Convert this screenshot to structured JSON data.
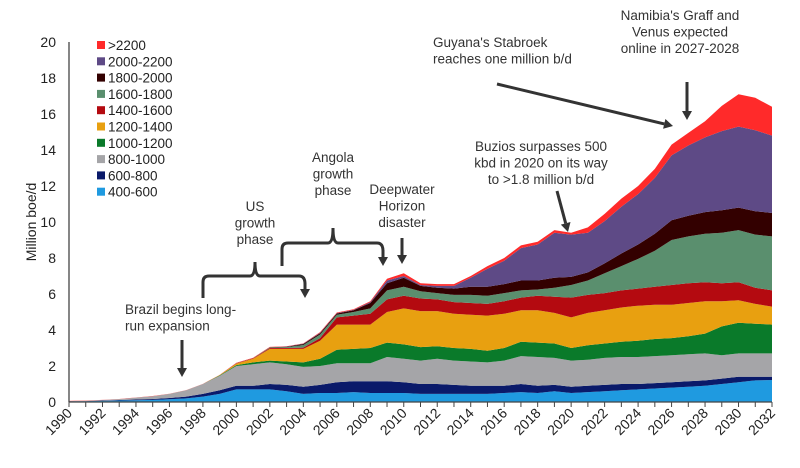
{
  "chart_data": {
    "type": "area",
    "stacked": true,
    "ylabel": "Million boe/d",
    "xlabel": "",
    "ylim": [
      0,
      20
    ],
    "yticks": [
      "0",
      "2",
      "4",
      "6",
      "8",
      "10",
      "12",
      "14",
      "16",
      "18",
      "20"
    ],
    "xlim": [
      1990,
      2032
    ],
    "grid": false,
    "legend_position": "top-left",
    "x": [
      1990,
      1991,
      1992,
      1993,
      1994,
      1995,
      1996,
      1997,
      1998,
      1999,
      2000,
      2001,
      2002,
      2003,
      2004,
      2005,
      2006,
      2007,
      2008,
      2009,
      2010,
      2011,
      2012,
      2013,
      2014,
      2015,
      2016,
      2017,
      2018,
      2019,
      2020,
      2021,
      2022,
      2023,
      2024,
      2025,
      2026,
      2027,
      2028,
      2029,
      2030,
      2031,
      2032
    ],
    "xtick_labels": [
      "1990",
      "1992",
      "1994",
      "1996",
      "1998",
      "2000",
      "2002",
      "2004",
      "2006",
      "2008",
      "2010",
      "2012",
      "2014",
      "2016",
      "2018",
      "2020",
      "2022",
      "2024",
      "2026",
      "2028",
      "2030",
      "2032"
    ],
    "series": [
      {
        "name": "400-600",
        "color": "#1f9ae0",
        "values": [
          0.03,
          0.04,
          0.06,
          0.08,
          0.1,
          0.12,
          0.15,
          0.2,
          0.3,
          0.45,
          0.7,
          0.7,
          0.7,
          0.6,
          0.45,
          0.5,
          0.5,
          0.55,
          0.5,
          0.5,
          0.5,
          0.45,
          0.45,
          0.45,
          0.45,
          0.45,
          0.5,
          0.55,
          0.5,
          0.6,
          0.5,
          0.55,
          0.6,
          0.65,
          0.7,
          0.75,
          0.8,
          0.85,
          0.9,
          1.0,
          1.1,
          1.2,
          1.22
        ]
      },
      {
        "name": "600-800",
        "color": "#0a1a6a",
        "values": [
          0.01,
          0.01,
          0.02,
          0.03,
          0.04,
          0.05,
          0.07,
          0.1,
          0.15,
          0.2,
          0.2,
          0.2,
          0.3,
          0.35,
          0.4,
          0.45,
          0.6,
          0.6,
          0.65,
          0.65,
          0.6,
          0.55,
          0.55,
          0.5,
          0.45,
          0.45,
          0.4,
          0.45,
          0.4,
          0.35,
          0.35,
          0.35,
          0.35,
          0.35,
          0.3,
          0.3,
          0.3,
          0.3,
          0.3,
          0.3,
          0.3,
          0.2,
          0.18
        ]
      },
      {
        "name": "800-1000",
        "color": "#a5a5a8",
        "values": [
          0.01,
          0.02,
          0.03,
          0.05,
          0.1,
          0.15,
          0.23,
          0.35,
          0.55,
          0.8,
          1.1,
          1.2,
          1.2,
          1.15,
          1.1,
          1.05,
          1.05,
          1.0,
          1.0,
          1.35,
          1.3,
          1.3,
          1.4,
          1.35,
          1.35,
          1.3,
          1.4,
          1.55,
          1.6,
          1.5,
          1.45,
          1.45,
          1.5,
          1.5,
          1.5,
          1.5,
          1.5,
          1.5,
          1.5,
          1.3,
          1.3,
          1.3,
          1.3
        ]
      },
      {
        "name": "1000-1200",
        "color": "#0a7a2a",
        "values": [
          0,
          0,
          0,
          0,
          0,
          0,
          0,
          0,
          0,
          0.03,
          0.05,
          0.1,
          0.1,
          0.15,
          0.25,
          0.4,
          0.75,
          0.8,
          0.85,
          0.8,
          0.8,
          0.75,
          0.7,
          0.7,
          0.7,
          0.65,
          0.7,
          0.8,
          0.8,
          0.8,
          0.7,
          0.8,
          0.8,
          0.85,
          0.9,
          0.95,
          0.95,
          1.0,
          1.1,
          1.6,
          1.7,
          1.65,
          1.6
        ]
      },
      {
        "name": "1200-1400",
        "color": "#e8a010",
        "values": [
          0,
          0,
          0,
          0,
          0,
          0,
          0,
          0,
          0,
          0.02,
          0.08,
          0.2,
          0.65,
          0.7,
          0.75,
          1.0,
          1.4,
          1.35,
          1.3,
          1.7,
          2.0,
          2.0,
          1.95,
          1.9,
          1.9,
          1.95,
          1.9,
          1.75,
          1.8,
          1.7,
          1.7,
          1.8,
          1.85,
          1.9,
          1.95,
          1.9,
          1.85,
          1.85,
          1.8,
          1.4,
          1.25,
          1.1,
          1.0
        ]
      },
      {
        "name": "1400-1600",
        "color": "#b40a10",
        "values": [
          0,
          0,
          0,
          0,
          0,
          0,
          0,
          0,
          0,
          0,
          0.02,
          0.03,
          0.05,
          0.05,
          0.07,
          0.15,
          0.4,
          0.5,
          0.6,
          0.7,
          0.7,
          0.7,
          0.65,
          0.65,
          0.65,
          0.65,
          0.7,
          0.7,
          0.8,
          0.9,
          1.1,
          1.0,
          0.95,
          0.95,
          0.95,
          1.0,
          1.1,
          1.1,
          1.05,
          1.0,
          1.0,
          0.9,
          0.9
        ]
      },
      {
        "name": "1600-1800",
        "color": "#5a8f6e",
        "values": [
          0,
          0,
          0,
          0,
          0,
          0,
          0,
          0,
          0,
          0,
          0.01,
          0.01,
          0.03,
          0.05,
          0.15,
          0.2,
          0.15,
          0.2,
          0.3,
          0.5,
          0.5,
          0.4,
          0.35,
          0.4,
          0.45,
          0.45,
          0.45,
          0.4,
          0.35,
          0.5,
          0.7,
          0.8,
          1.1,
          1.35,
          1.65,
          2.0,
          2.5,
          2.6,
          2.7,
          2.8,
          2.9,
          2.95,
          3.0
        ]
      },
      {
        "name": "1800-2000",
        "color": "#330000",
        "values": [
          0,
          0,
          0,
          0,
          0,
          0,
          0,
          0,
          0,
          0,
          0,
          0,
          0.01,
          0.02,
          0.05,
          0.07,
          0.07,
          0.1,
          0.3,
          0.4,
          0.5,
          0.3,
          0.3,
          0.35,
          0.45,
          0.5,
          0.5,
          0.55,
          0.5,
          0.55,
          0.45,
          0.45,
          0.55,
          0.7,
          0.8,
          0.95,
          1.1,
          1.15,
          1.2,
          1.25,
          1.25,
          1.3,
          1.3
        ]
      },
      {
        "name": "2000-2200",
        "color": "#5e4a86",
        "values": [
          0,
          0,
          0,
          0,
          0,
          0,
          0,
          0,
          0,
          0,
          0,
          0,
          0,
          0.01,
          0.02,
          0.03,
          0.02,
          0.02,
          0.05,
          0.15,
          0.1,
          0.05,
          0.1,
          0.15,
          0.5,
          1.0,
          1.3,
          1.8,
          2.0,
          2.5,
          2.35,
          2.2,
          2.35,
          2.6,
          2.8,
          3.1,
          3.6,
          3.9,
          4.15,
          4.4,
          4.5,
          4.5,
          4.3
        ]
      },
      {
        "name": ">2200",
        "color": "#ff2a2a",
        "values": [
          0.01,
          0.01,
          0.01,
          0.01,
          0.01,
          0.01,
          0.01,
          0.01,
          0.01,
          0.01,
          0.02,
          0.02,
          0.02,
          0.02,
          0.02,
          0.03,
          0.03,
          0.03,
          0.05,
          0.1,
          0.15,
          0.1,
          0.1,
          0.1,
          0.1,
          0.15,
          0.15,
          0.15,
          0.15,
          0.15,
          0.1,
          0.3,
          0.4,
          0.45,
          0.45,
          0.5,
          0.6,
          0.7,
          0.9,
          1.4,
          1.8,
          1.8,
          1.6
        ]
      }
    ],
    "annotations": [
      {
        "id": "brazil",
        "lines": [
          "Brazil begins long-",
          "run expansion"
        ]
      },
      {
        "id": "us",
        "lines": [
          "US",
          "growth",
          "phase"
        ]
      },
      {
        "id": "angola",
        "lines": [
          "Angola",
          "growth",
          "phase"
        ]
      },
      {
        "id": "deepwater",
        "lines": [
          "Deepwater",
          "Horizon",
          "disaster"
        ]
      },
      {
        "id": "guyana",
        "lines": [
          "Guyana's Stabroek",
          "reaches one million b/d"
        ]
      },
      {
        "id": "buzios",
        "lines": [
          "Buzios surpasses 500",
          "kbd in 2020 on its way",
          "to >1.8 million b/d"
        ]
      },
      {
        "id": "namibia",
        "lines": [
          "Namibia's Graff and",
          "Venus expected",
          "online in 2027-2028"
        ]
      }
    ]
  }
}
